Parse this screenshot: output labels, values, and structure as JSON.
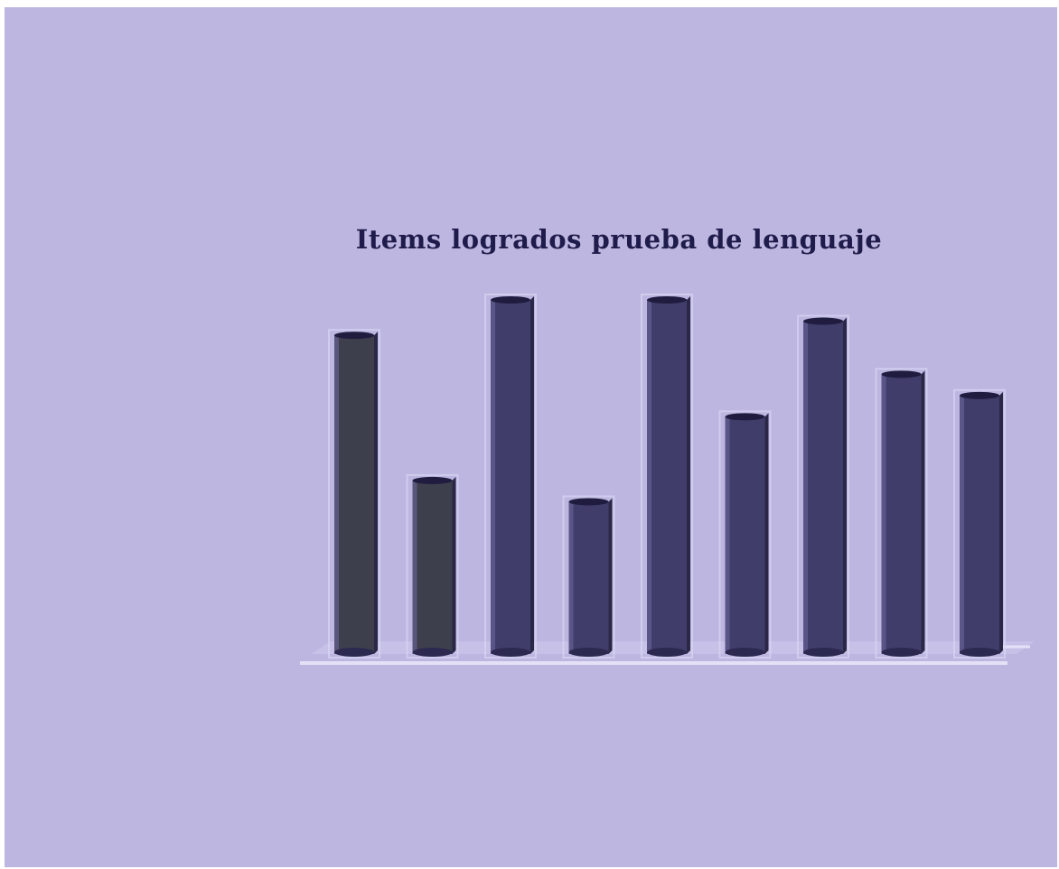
{
  "chart_data": {
    "type": "bar",
    "title": "Items logrados prueba de lenguaje",
    "xlabel": "",
    "ylabel": "",
    "categories": [
      "",
      "",
      "",
      "",
      "",
      "",
      "",
      "",
      ""
    ],
    "values": [
      90,
      49,
      100,
      43,
      100,
      67,
      94,
      79,
      73
    ],
    "value_labels": [
      "",
      "",
      "",
      "",
      "",
      "",
      "",
      "",
      ""
    ],
    "ylim": [
      0,
      100
    ],
    "grid": false,
    "legend": "none",
    "colors": {
      "background": "#bdb6e0",
      "bar_dark": "#3e3f4c",
      "bar": "#413d6b",
      "bar_highlight": "#5a568a",
      "floor": "#cfcbee",
      "title": "#1f1b4a"
    },
    "bar_color_keys": [
      "bar_dark",
      "bar_dark",
      "bar",
      "bar",
      "bar",
      "bar",
      "bar",
      "bar",
      "bar"
    ]
  }
}
